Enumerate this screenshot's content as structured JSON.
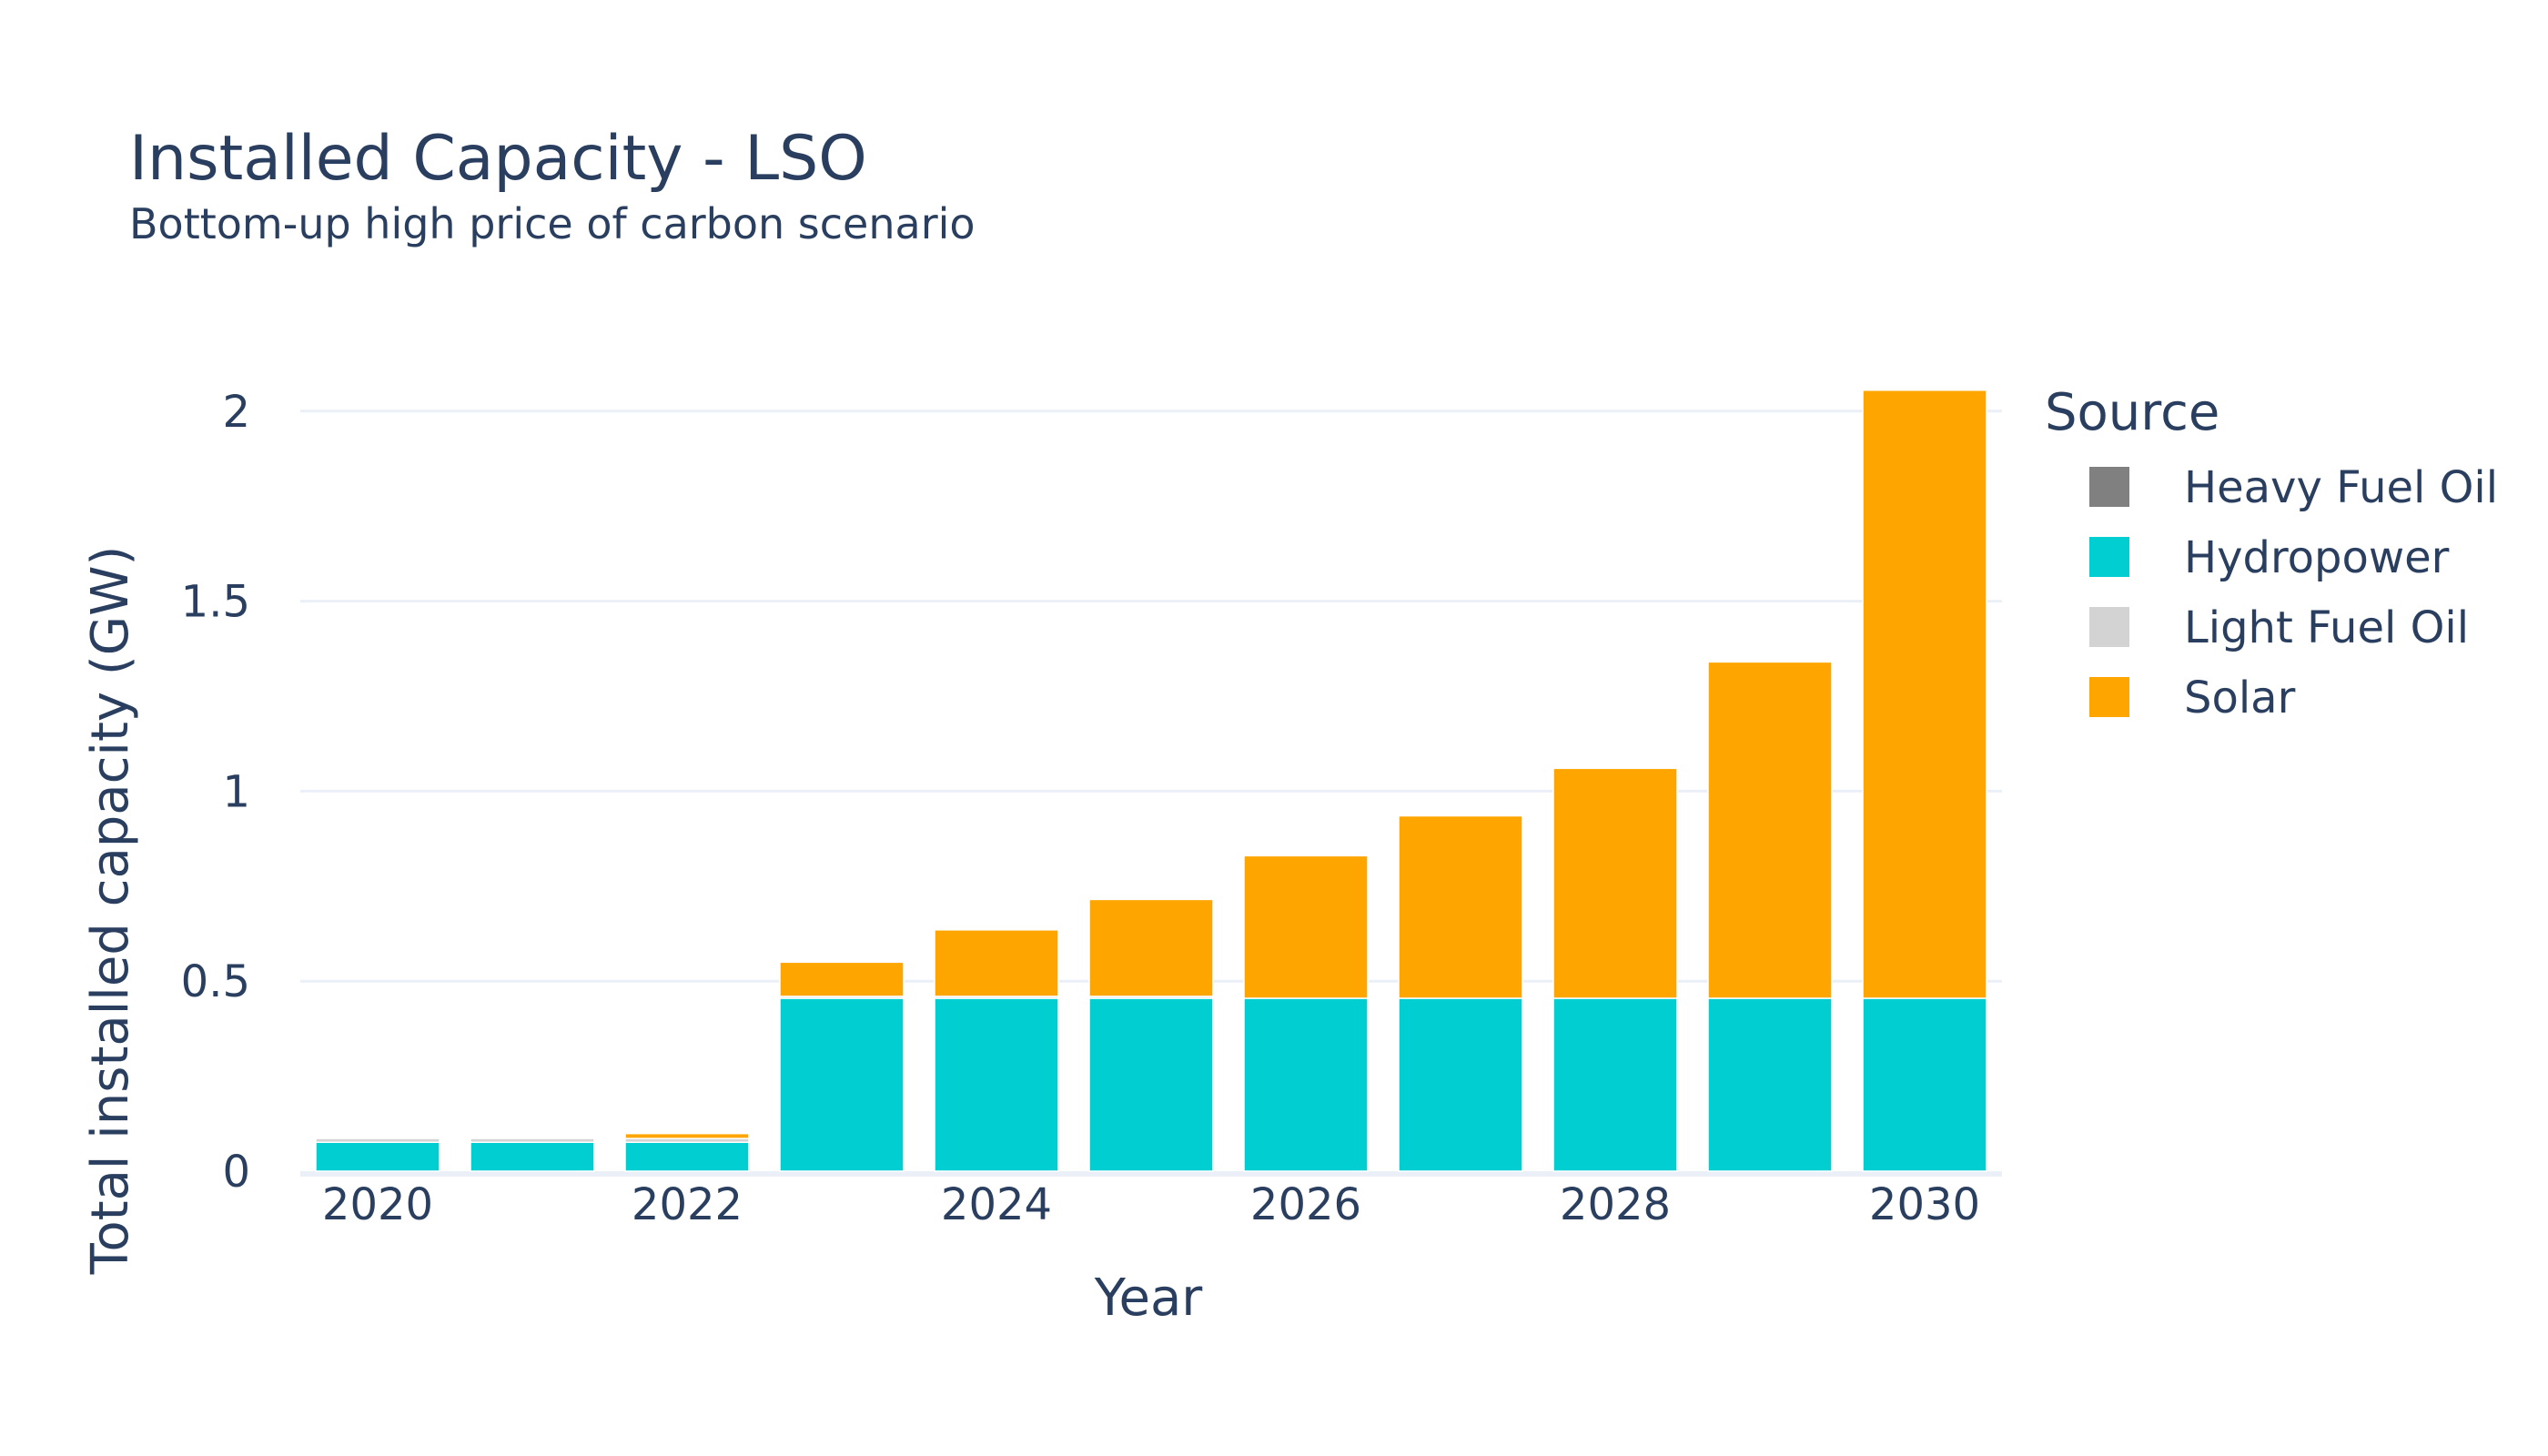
{
  "chart_data": {
    "type": "bar",
    "stacked": true,
    "title": "Installed Capacity - LSO",
    "subtitle": "Bottom-up high price of carbon scenario",
    "xlabel": "Year",
    "ylabel": "Total installed capacity (GW)",
    "ylim": [
      0,
      2.1
    ],
    "grid": true,
    "categories": [
      2020,
      2021,
      2022,
      2023,
      2024,
      2025,
      2026,
      2027,
      2028,
      2029,
      2030
    ],
    "x_ticks": [
      "2020",
      "2022",
      "2024",
      "2026",
      "2028",
      "2030"
    ],
    "y_ticks": [
      "0",
      "0.5",
      "1",
      "1.5",
      "2"
    ],
    "y_tick_values": [
      0,
      0.5,
      1,
      1.5,
      2
    ],
    "legend_title": "Source",
    "legend_position": "right",
    "series": [
      {
        "name": "Heavy Fuel Oil",
        "color": "#808080",
        "values": [
          0,
          0,
          0,
          0,
          0,
          0,
          0,
          0,
          0,
          0,
          0
        ]
      },
      {
        "name": "Hydropower",
        "color": "#00ced1",
        "values": [
          0.076,
          0.076,
          0.076,
          0.455,
          0.455,
          0.455,
          0.455,
          0.455,
          0.455,
          0.455,
          0.455
        ]
      },
      {
        "name": "Light Fuel Oil",
        "color": "#d3d3d3",
        "values": [
          0.01,
          0.01,
          0.01,
          0.005,
          0.005,
          0.005,
          0,
          0,
          0,
          0,
          0
        ]
      },
      {
        "name": "Solar",
        "color": "#ffa500",
        "values": [
          0,
          0,
          0.013,
          0.09,
          0.175,
          0.255,
          0.375,
          0.48,
          0.605,
          0.885,
          1.6
        ]
      }
    ]
  }
}
